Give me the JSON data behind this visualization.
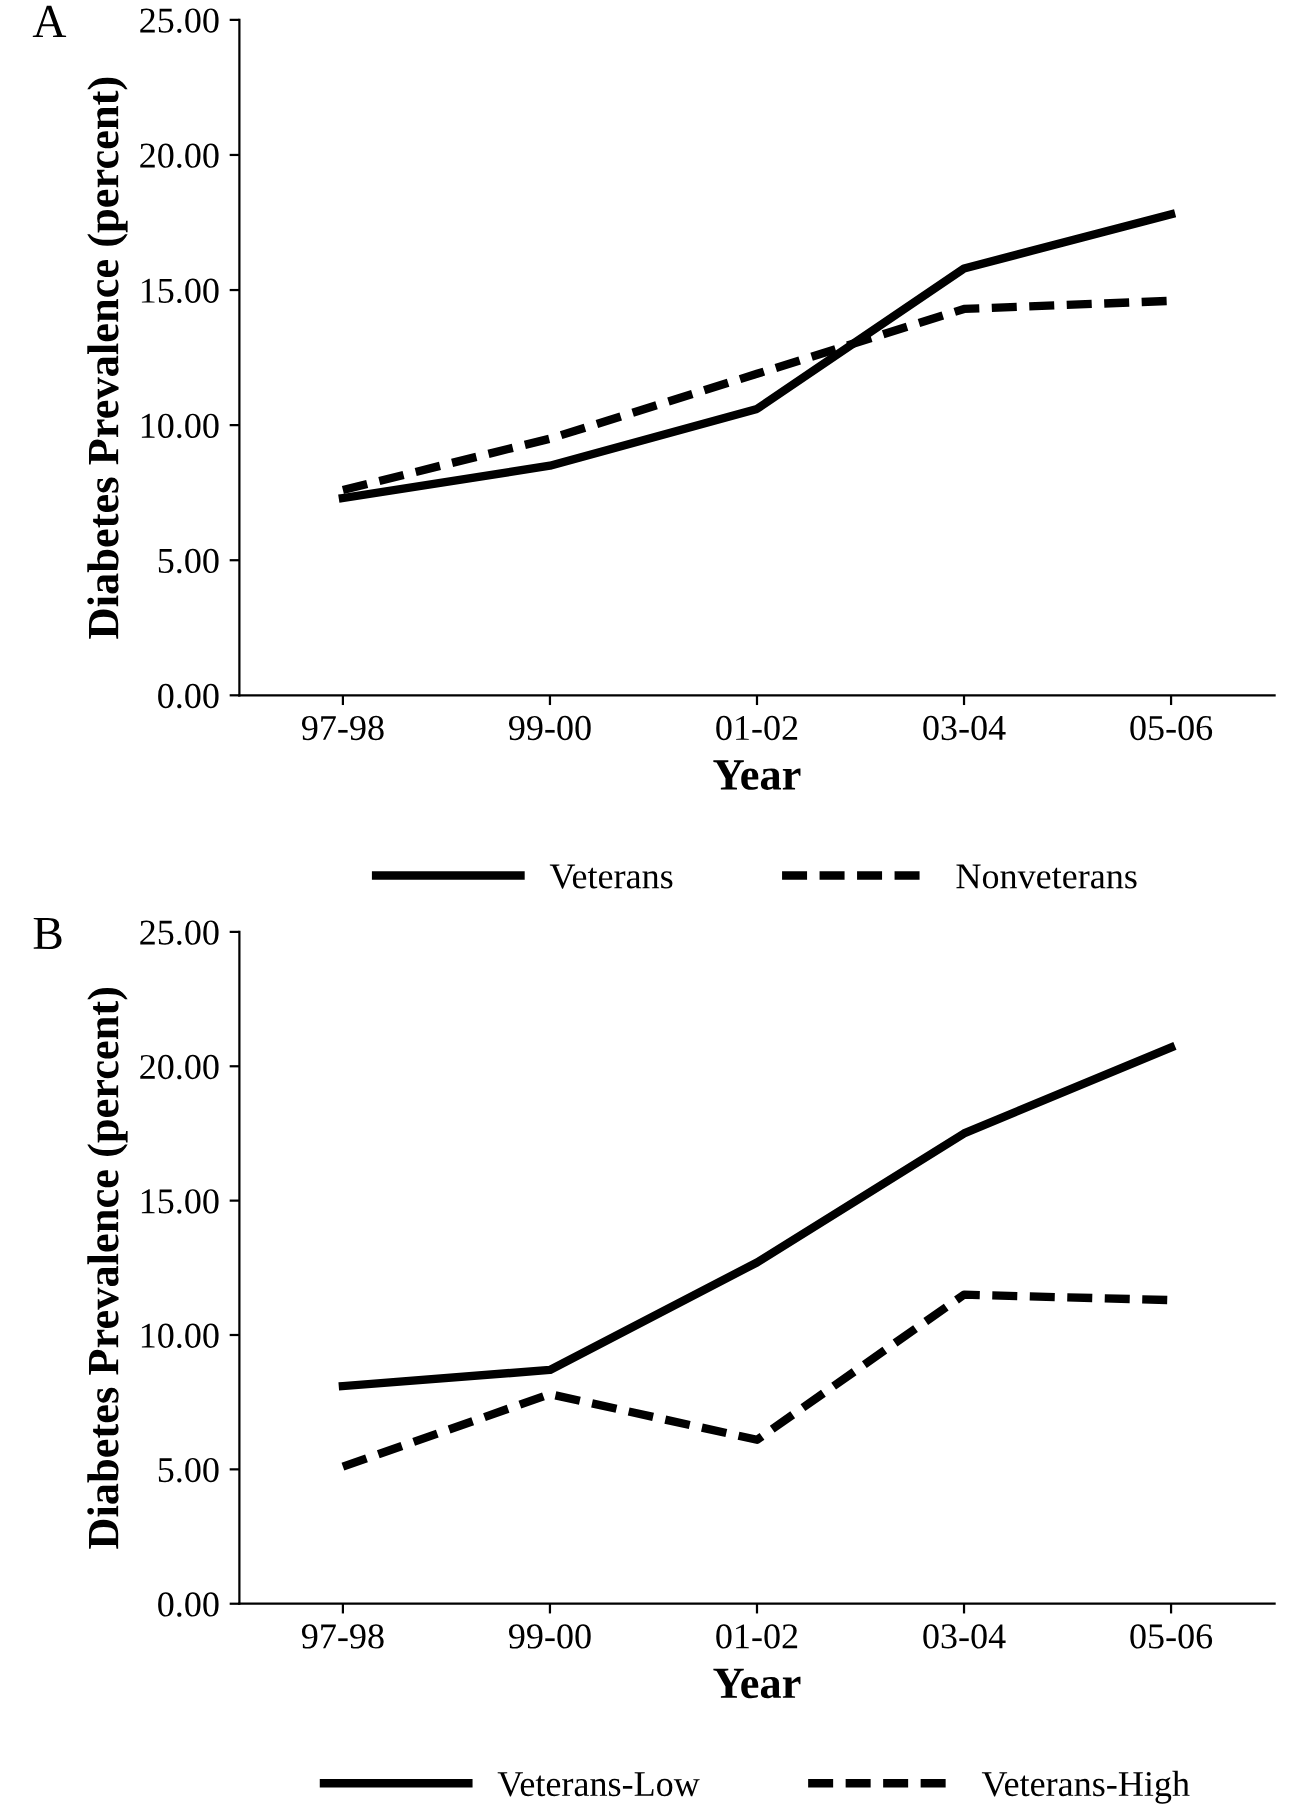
{
  "chart_data": [
    {
      "type": "line",
      "title": "A",
      "xlabel": "Year",
      "ylabel": "Diabetes Prevalence (percent)",
      "categories": [
        "97-98",
        "99-00",
        "01-02",
        "03-04",
        "05-06"
      ],
      "series": [
        {
          "name": "Veterans",
          "color": "#000000",
          "line_style": "solid",
          "values": [
            7.3,
            8.5,
            10.6,
            15.8,
            17.8
          ]
        },
        {
          "name": "Nonveterans",
          "color": "#000000",
          "line_style": "dashed",
          "values": [
            7.6,
            9.5,
            11.9,
            14.3,
            14.6
          ]
        }
      ],
      "ylim": [
        0,
        25
      ],
      "yticks": [
        {
          "value": 0,
          "label": "0.00"
        },
        {
          "value": 5,
          "label": "5.00"
        },
        {
          "value": 10,
          "label": "10.00"
        },
        {
          "value": 15,
          "label": "15.00"
        },
        {
          "value": 20,
          "label": "20.00"
        },
        {
          "value": 25,
          "label": "25.00"
        }
      ],
      "grid": false,
      "legend": "bottom",
      "marker": "none"
    },
    {
      "type": "line",
      "title": "B",
      "xlabel": "Year",
      "ylabel": "Diabetes Prevalence (percent)",
      "categories": [
        "97-98",
        "99-00",
        "01-02",
        "03-04",
        "05-06"
      ],
      "series": [
        {
          "name": "Veterans-Low",
          "color": "#000000",
          "line_style": "solid",
          "values": [
            8.1,
            8.7,
            12.7,
            17.5,
            20.7
          ]
        },
        {
          "name": "Veterans-High",
          "color": "#000000",
          "line_style": "dashed",
          "values": [
            5.1,
            7.8,
            6.1,
            11.5,
            11.3
          ]
        }
      ],
      "ylim": [
        0,
        25
      ],
      "yticks": [
        {
          "value": 0,
          "label": "0.00"
        },
        {
          "value": 5,
          "label": "5.00"
        },
        {
          "value": 10,
          "label": "10.00"
        },
        {
          "value": 15,
          "label": "15.00"
        },
        {
          "value": 20,
          "label": "20.00"
        },
        {
          "value": 25,
          "label": "25.00"
        }
      ],
      "grid": false,
      "legend": "bottom",
      "marker": "none"
    }
  ]
}
